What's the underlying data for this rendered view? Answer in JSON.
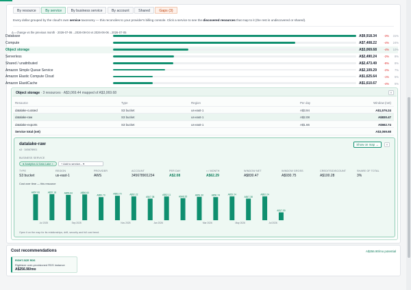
{
  "tabs": [
    {
      "label": "By resource",
      "state": "normal"
    },
    {
      "label": "By service",
      "state": "active"
    },
    {
      "label": "By business service",
      "state": "normal"
    },
    {
      "label": "By account",
      "state": "normal"
    },
    {
      "label": "Shared",
      "state": "normal"
    },
    {
      "label": "Gaps (3)",
      "state": "warning"
    }
  ],
  "description": {
    "prefix": "Every dollar grouped by the cloud's own ",
    "service": "service",
    "middle": " taxonomy — this reconciles to your provider's billing console. Click a service to see the ",
    "discovered": "discovered resources",
    "suffix": " that map to it (the rest is undiscovered or shared)."
  },
  "delta_note": "Δ = change vs the previous month · 2026-07-06→2026-08-04 vs 2026-06-06→2026-07-05",
  "services": [
    {
      "name": "Database",
      "amount": "A$9,918.34",
      "change": "-3%",
      "pct": "31%",
      "share": 1.0
    },
    {
      "name": "Compute",
      "amount": "A$7,408.22",
      "change": "-4%",
      "pct": "24%",
      "share": 0.75
    },
    {
      "name": "Object storage",
      "amount": "A$3,069.68",
      "change": "-4%",
      "pct": "10%",
      "share": 0.31,
      "selected": true
    },
    {
      "name": "Serverless",
      "amount": "A$2,490.24",
      "change": "-2%",
      "pct": "8%",
      "share": 0.25
    },
    {
      "name": "Shared / unattributed",
      "amount": "A$2,473.49",
      "change": "-8%",
      "pct": "8%",
      "share": 0.249
    },
    {
      "name": "Amazon Simple Queue Service",
      "amount": "A$2,109.29",
      "change": "-2%",
      "pct": "7%",
      "share": 0.213
    },
    {
      "name": "Amazon Elastic Compute Cloud",
      "amount": "A$1,625.64",
      "change": "-1%",
      "pct": "5%",
      "share": 0.164
    },
    {
      "name": "Amazon ElastiCache",
      "amount": "A$1,610.67",
      "change": "-4%",
      "pct": "5%",
      "share": 0.162
    }
  ],
  "detail": {
    "title": "Object storage",
    "subtitle": " · 3 resources · A$3,069.44 mapped of A$3,069.68",
    "close": "×",
    "columns": [
      "Resource",
      "Type",
      "Region",
      "Per day",
      "Window (net)"
    ],
    "rows": [
      {
        "resource": "datalake-curated",
        "type": "S3 bucket",
        "region": "us-east-1",
        "per_day": "A$3.94",
        "window": "A$1,576.24"
      },
      {
        "resource": "datalake-raw",
        "type": "S3 bucket",
        "region": "us-east-1",
        "per_day": "A$2.08",
        "window": "A$830.47",
        "selected": true
      },
      {
        "resource": "datalake-exports",
        "type": "S3 bucket",
        "region": "us-east-1",
        "per_day": "A$1.66",
        "window": "A$662.74"
      }
    ],
    "total_label": "Service total (net)",
    "total_value": "A$3,069.68"
  },
  "resource": {
    "name": "datalake-raw",
    "id": "s3 · 345678901",
    "show_on_map": "Show on map →",
    "close": "×",
    "business_service_label": "BUSINESS SERVICE",
    "business_service_chip": "● Analytics & Data Lake ×",
    "add_service": "+ Add to service...",
    "fields": [
      {
        "label": "TYPE",
        "value": "S3 bucket",
        "highlight": false
      },
      {
        "label": "REGION",
        "value": "us-east-1",
        "highlight": false
      },
      {
        "label": "PROVIDER",
        "value": "AWS",
        "highlight": false
      },
      {
        "label": "ACCOUNT",
        "value": "345678901234",
        "highlight": false
      },
      {
        "label": "PER DAY",
        "value": "A$2.08",
        "highlight": true
      },
      {
        "label": "≈ / MONTH",
        "value": "A$62.29",
        "highlight": true
      },
      {
        "label": "WINDOW NET",
        "value": "A$830.47",
        "highlight": false
      },
      {
        "label": "WINDOW GROSS",
        "value": "A$930.75",
        "highlight": false
      },
      {
        "label": "CREDITS/DISCOUNT",
        "value": "A$100.28",
        "highlight": false
      },
      {
        "label": "SHARE OF TOTAL",
        "value": "3%",
        "highlight": false
      }
    ],
    "chart_title": "Cost over time — this resource",
    "footnote": "Open it on the map for its relationships, drift, security and full cost trend."
  },
  "chart_data": {
    "type": "bar",
    "title": "Cost over time — this resource",
    "values": [
      57.0,
      57.18,
      55.64,
      56.6,
      50.7,
      53.7,
      52.22,
      47.38,
      52.11,
      48.35,
      51.3,
      50.74,
      52.24,
      47.38,
      52.24,
      17.3
    ],
    "data_labels": [
      "A$57.00",
      "A$57.18",
      "A$55.64",
      "A$56.60",
      "A$50.70",
      "A$53.70",
      "A$52.22",
      "A$47.38",
      "A$52.11",
      "A$48.35",
      "A$51.30",
      "A$50.74",
      "A$52.24",
      "A$47.38",
      "A$52.24",
      "A$17.30"
    ],
    "tick_labels": [
      {
        "index": 1,
        "label": "Jul 2025"
      },
      {
        "index": 3,
        "label": "Sep 2025"
      },
      {
        "index": 6,
        "label": "Nov 2025"
      },
      {
        "index": 8,
        "label": "Jan 2026"
      },
      {
        "index": 11,
        "label": "Mar 2026"
      },
      {
        "index": 13,
        "label": "May 2026"
      },
      {
        "index": 15,
        "label": "Jul 2026"
      }
    ],
    "ylim": [
      0,
      60
    ],
    "grid": false,
    "bar_color": "#0f8f6f"
  },
  "recommendations": {
    "title": "Cost recommendations",
    "potential": "A$256.90/mo potential",
    "items": [
      {
        "type": "RIGHT-SIZE RDS",
        "description": "Rightsize over-provisioned RDS instance",
        "value": "A$256.90/mo"
      }
    ]
  }
}
